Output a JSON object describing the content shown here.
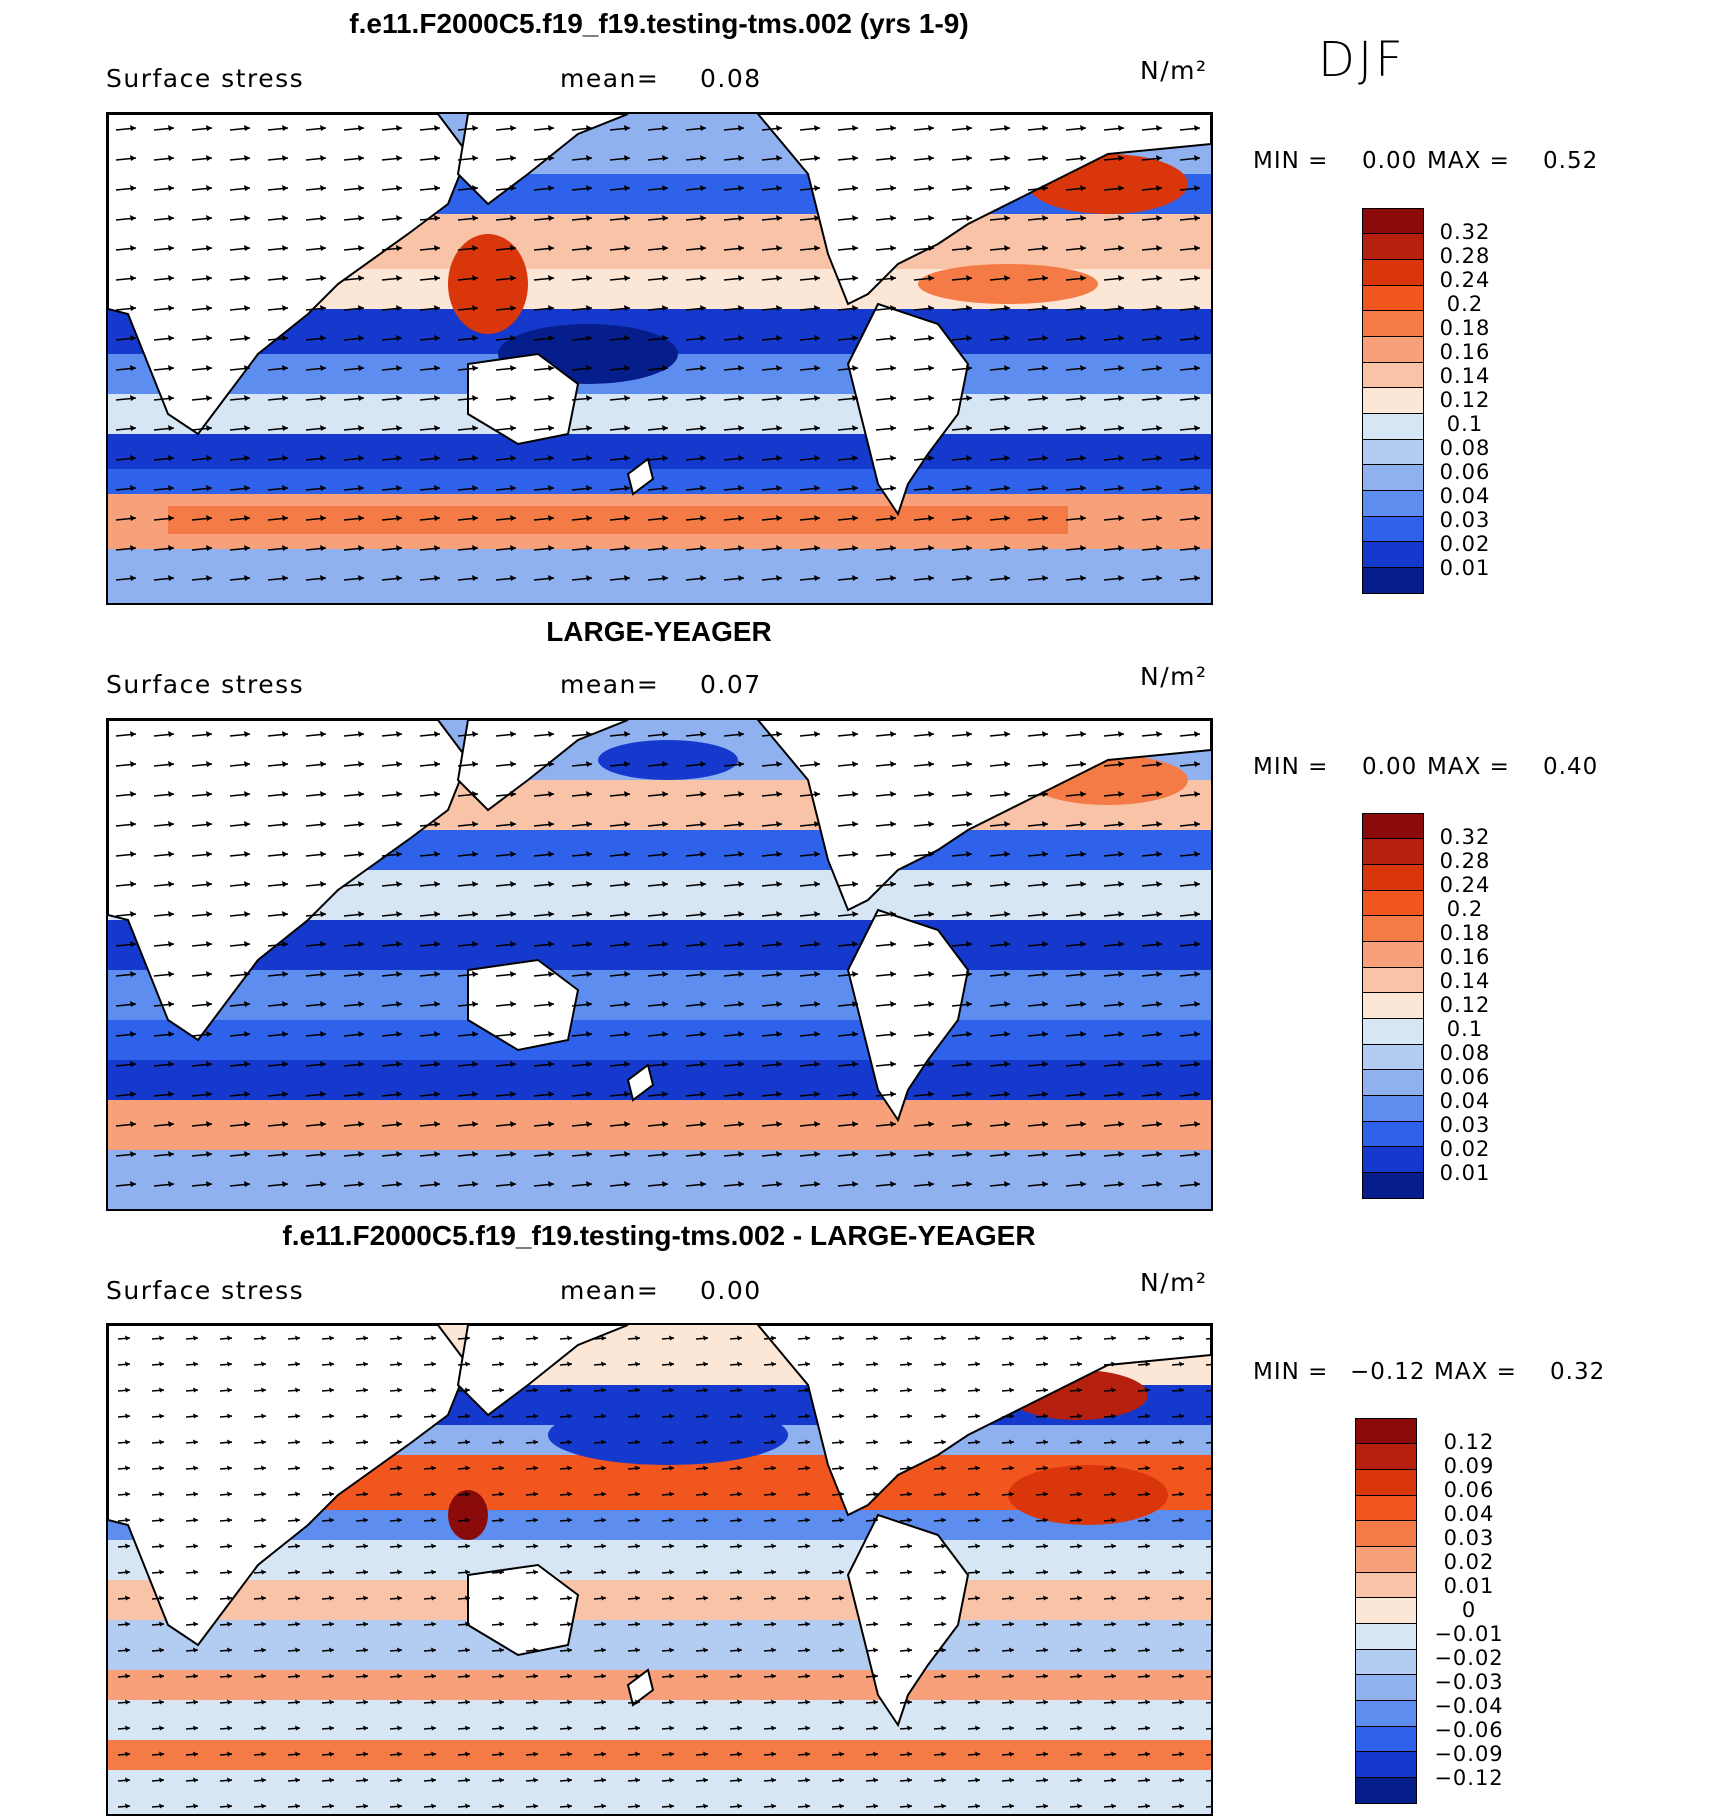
{
  "season": "DJF",
  "panels": [
    {
      "title": "f.e11.F2000C5.f19_f19.testing-tms.002 (yrs 1-9)",
      "variable": "Surface stress",
      "mean_label": "mean=",
      "mean": "0.08",
      "units": "N/m²",
      "min_label": "MIN =",
      "min": "0.00",
      "max_label": "MAX =",
      "max": "0.52",
      "colorbar": [
        "0.32",
        "0.28",
        "0.24",
        "0.2",
        "0.18",
        "0.16",
        "0.14",
        "0.12",
        "0.1",
        "0.08",
        "0.06",
        "0.04",
        "0.03",
        "0.02",
        "0.01"
      ],
      "colors": [
        "#8b0a0a",
        "#b5200f",
        "#d9360b",
        "#f0561e",
        "#f47b45",
        "#f7a07a",
        "#f9c3a8",
        "#fce6d6",
        "#d6e6f5",
        "#b3ccf2",
        "#8fb1f0",
        "#5e8df0",
        "#2e62ea",
        "#1439cc",
        "#061e8c"
      ]
    },
    {
      "title": "LARGE-YEAGER",
      "variable": "Surface stress",
      "mean_label": "mean=",
      "mean": "0.07",
      "units": "N/m²",
      "min_label": "MIN =",
      "min": "0.00",
      "max_label": "MAX =",
      "max": "0.40",
      "colorbar": [
        "0.32",
        "0.28",
        "0.24",
        "0.2",
        "0.18",
        "0.16",
        "0.14",
        "0.12",
        "0.1",
        "0.08",
        "0.06",
        "0.04",
        "0.03",
        "0.02",
        "0.01"
      ],
      "colors": [
        "#8b0a0a",
        "#b5200f",
        "#d9360b",
        "#f0561e",
        "#f47b45",
        "#f7a07a",
        "#f9c3a8",
        "#fce6d6",
        "#d6e6f5",
        "#b3ccf2",
        "#8fb1f0",
        "#5e8df0",
        "#2e62ea",
        "#1439cc",
        "#061e8c"
      ]
    },
    {
      "title": "f.e11.F2000C5.f19_f19.testing-tms.002 - LARGE-YEAGER",
      "variable": "Surface stress",
      "mean_label": "mean=",
      "mean": "0.00",
      "units": "N/m²",
      "min_label": "MIN =",
      "min": "−0.12",
      "max_label": "MAX =",
      "max": "0.32",
      "colorbar": [
        "0.12",
        "0.09",
        "0.06",
        "0.04",
        "0.03",
        "0.02",
        "0.01",
        "0",
        "−0.01",
        "−0.02",
        "−0.03",
        "−0.04",
        "−0.06",
        "−0.09",
        "−0.12"
      ],
      "colors": [
        "#8b0a0a",
        "#b5200f",
        "#d9360b",
        "#f0561e",
        "#f47b45",
        "#f7a07a",
        "#f9c3a8",
        "#fce6d6",
        "#d6e6f5",
        "#b3ccf2",
        "#8fb1f0",
        "#5e8df0",
        "#2e62ea",
        "#1439cc",
        "#061e8c"
      ]
    }
  ]
}
